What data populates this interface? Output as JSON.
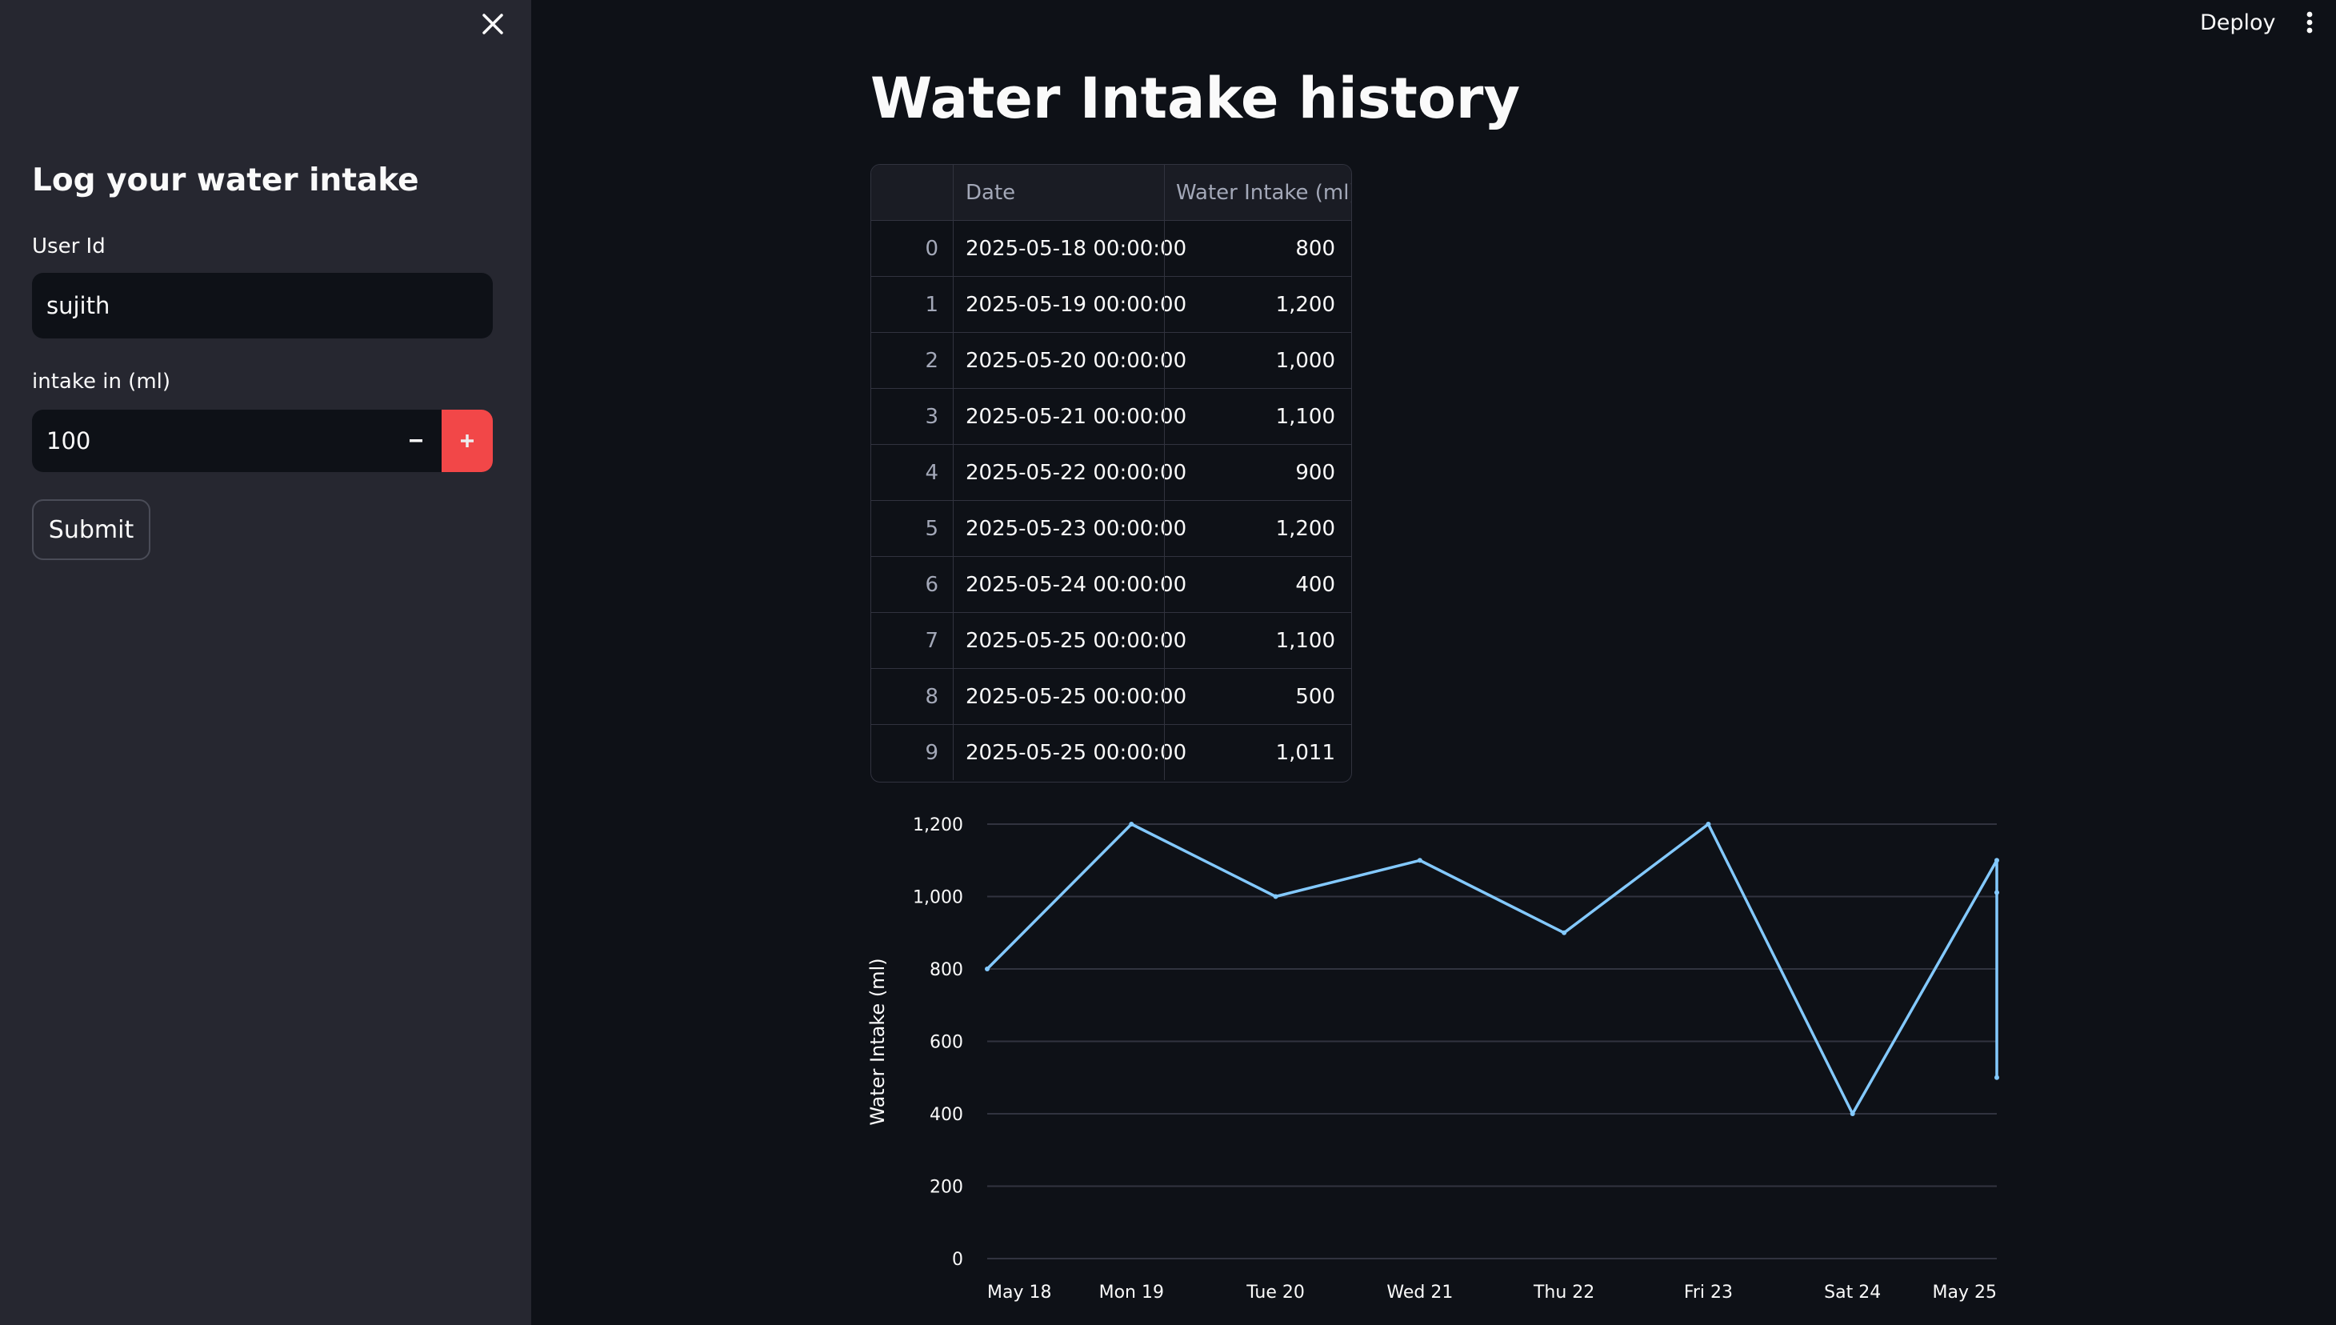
{
  "sidebar": {
    "heading": "Log your water intake",
    "user_id_label": "User Id",
    "user_id_value": "sujith",
    "intake_label": "intake in (ml)",
    "intake_value": "100",
    "submit_label": "Submit"
  },
  "header": {
    "deploy_label": "Deploy"
  },
  "main": {
    "title": "Water Intake history",
    "table": {
      "columns": [
        "",
        "Date",
        "Water Intake (ml)"
      ],
      "rows": [
        [
          "0",
          "2025-05-18 00:00:00",
          "800"
        ],
        [
          "1",
          "2025-05-19 00:00:00",
          "1,200"
        ],
        [
          "2",
          "2025-05-20 00:00:00",
          "1,000"
        ],
        [
          "3",
          "2025-05-21 00:00:00",
          "1,100"
        ],
        [
          "4",
          "2025-05-22 00:00:00",
          "900"
        ],
        [
          "5",
          "2025-05-23 00:00:00",
          "1,200"
        ],
        [
          "6",
          "2025-05-24 00:00:00",
          "400"
        ],
        [
          "7",
          "2025-05-25 00:00:00",
          "1,100"
        ],
        [
          "8",
          "2025-05-25 00:00:00",
          "500"
        ],
        [
          "9",
          "2025-05-25 00:00:00",
          "1,011"
        ]
      ]
    }
  },
  "chart_data": {
    "type": "line",
    "x": [
      "2025-05-18",
      "2025-05-19",
      "2025-05-20",
      "2025-05-21",
      "2025-05-22",
      "2025-05-23",
      "2025-05-24",
      "2025-05-25",
      "2025-05-25",
      "2025-05-25"
    ],
    "series": [
      {
        "values": [
          800,
          1200,
          1000,
          1100,
          900,
          1200,
          400,
          1100,
          500,
          1011
        ]
      }
    ],
    "xlabel": "",
    "ylabel": "Water Intake (ml)",
    "xticks": [
      "May 18",
      "Mon 19",
      "Tue 20",
      "Wed 21",
      "Thu 22",
      "Fri 23",
      "Sat 24",
      "May 25"
    ],
    "yticks": [
      "0",
      "200",
      "400",
      "600",
      "800",
      "1,000",
      "1,200"
    ],
    "ylim": [
      0,
      1200
    ],
    "grid": true,
    "line_color": "#83c9ff",
    "grid_color": "#31333f"
  },
  "colors": {
    "background": "#0e1117",
    "sidebar": "#262730",
    "accent": "#ff4b4b",
    "text": "#fafafa"
  },
  "icons": {
    "close": "close-icon",
    "minus": "minus-icon",
    "plus": "plus-icon",
    "menu": "kebab-menu-icon"
  }
}
